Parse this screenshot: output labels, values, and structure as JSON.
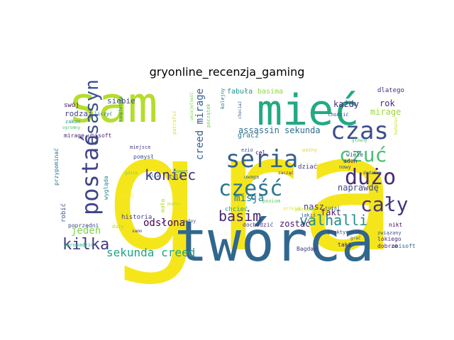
{
  "chart_data": {
    "type": "wordcloud",
    "title": "gryonline_recenzja_gaming",
    "background": "#ffffff",
    "palette": "viridis",
    "grid": false,
    "legend": "none",
    "words": [
      {
        "text": "gra",
        "weight": 1.0,
        "color": "#f5e61c"
      },
      {
        "text": "sam",
        "weight": 0.46,
        "color": "#b5dd2b"
      },
      {
        "text": "twórca",
        "weight": 0.46,
        "color": "#31678e"
      },
      {
        "text": "mieć",
        "weight": 0.34,
        "color": "#23a983"
      },
      {
        "text": "czas",
        "weight": 0.22,
        "color": "#3d4d8a"
      },
      {
        "text": "seria",
        "weight": 0.22,
        "color": "#355f8d"
      },
      {
        "text": "postać",
        "weight": 0.2,
        "color": "#414487"
      },
      {
        "text": "asasyn",
        "weight": 0.2,
        "color": "#3b518b"
      },
      {
        "text": "dużo",
        "weight": 0.2,
        "color": "#472a7a"
      },
      {
        "text": "część",
        "weight": 0.18,
        "color": "#2b758e"
      },
      {
        "text": "cały",
        "weight": 0.18,
        "color": "#453581"
      },
      {
        "text": "czuć",
        "weight": 0.16,
        "color": "#46c06f"
      },
      {
        "text": "koniec",
        "weight": 0.14,
        "color": "#46327e"
      },
      {
        "text": "kilka",
        "weight": 0.13,
        "color": "#443983"
      },
      {
        "text": "valhalli",
        "weight": 0.12,
        "color": "#228c8d"
      },
      {
        "text": "basim",
        "weight": 0.12,
        "color": "#482576"
      },
      {
        "text": "sekunda creed",
        "weight": 0.1,
        "color": "#20a386"
      },
      {
        "text": "jeden",
        "weight": 0.1,
        "color": "#7fd34e"
      },
      {
        "text": "creed mirage",
        "weight": 0.09,
        "color": "#365c8d"
      },
      {
        "text": "odsłona",
        "weight": 0.08,
        "color": "#440154"
      },
      {
        "text": "assassin sekunda",
        "weight": 0.08,
        "color": "#2e6e8e"
      },
      {
        "text": "misja",
        "weight": 0.08,
        "color": "#277f8e"
      },
      {
        "text": "mirage",
        "weight": 0.08,
        "color": "#9bd93c"
      },
      {
        "text": "naprawdę",
        "weight": 0.07,
        "color": "#3f4788"
      },
      {
        "text": "zostać",
        "weight": 0.07,
        "color": "#471164"
      },
      {
        "text": "fakt",
        "weight": 0.07,
        "color": "#481f70"
      },
      {
        "text": "nasz",
        "weight": 0.07,
        "color": "#46337f"
      },
      {
        "text": "każdy",
        "weight": 0.07,
        "color": "#472d7b"
      },
      {
        "text": "rok",
        "weight": 0.07,
        "color": "#482878"
      },
      {
        "text": "rodzaj",
        "weight": 0.06,
        "color": "#433e85"
      },
      {
        "text": "siebie",
        "weight": 0.06,
        "color": "#3e4989"
      },
      {
        "text": "basima",
        "weight": 0.06,
        "color": "#8ed645"
      },
      {
        "text": "fabuła",
        "weight": 0.06,
        "color": "#21918c"
      },
      {
        "text": "gracz",
        "weight": 0.06,
        "color": "#2a788e"
      },
      {
        "text": "dlatego",
        "weight": 0.05,
        "color": "#472c7a"
      },
      {
        "text": "historia",
        "weight": 0.05,
        "color": "#414487"
      },
      {
        "text": "robić",
        "weight": 0.05,
        "color": "#3b528b"
      },
      {
        "text": "przypominać",
        "weight": 0.05,
        "color": "#2c728e"
      },
      {
        "text": "wygląda",
        "weight": 0.05,
        "color": "#25848e"
      },
      {
        "text": "chcieć",
        "weight": 0.05,
        "color": "#1f9e89"
      },
      {
        "text": "dziać",
        "weight": 0.05,
        "color": "#443a83"
      },
      {
        "text": "mirage ubisoft",
        "weight": 0.04,
        "color": "#482475"
      },
      {
        "text": "swój",
        "weight": 0.04,
        "color": "#471365"
      },
      {
        "text": "początek",
        "weight": 0.04,
        "color": "#6ccd5a"
      },
      {
        "text": "pomysł",
        "weight": 0.04,
        "color": "#3b528b"
      },
      {
        "text": "poprzedni",
        "weight": 0.04,
        "color": "#3f4788"
      },
      {
        "text": "aden",
        "weight": 0.04,
        "color": "#482374"
      },
      {
        "text": "mała",
        "weight": 0.04,
        "color": "#b0dd2f"
      },
      {
        "text": "cel",
        "weight": 0.04,
        "color": "#440154"
      },
      {
        "text": "wiele",
        "weight": 0.04,
        "color": "#3e4a89"
      },
      {
        "text": "dochodzić",
        "weight": 0.04,
        "color": "#46327e"
      },
      {
        "text": "wprowadzić",
        "weight": 0.04,
        "color": "#2db27d"
      },
      {
        "text": "ubisoft",
        "weight": 0.03,
        "color": "#33638d"
      },
      {
        "text": "dobrze",
        "weight": 0.03,
        "color": "#481c6e"
      },
      {
        "text": "lokiego",
        "weight": 0.03,
        "color": "#482979"
      },
      {
        "text": "związany",
        "weight": 0.03,
        "color": "#3a548c"
      },
      {
        "text": "nikt",
        "weight": 0.03,
        "color": "#46085c"
      },
      {
        "text": "taki",
        "weight": 0.03,
        "color": "#481769"
      },
      {
        "text": "Bagdad",
        "weight": 0.03,
        "color": "#424086"
      },
      {
        "text": "tyle",
        "weight": 0.03,
        "color": "#355f8d"
      },
      {
        "text": "zakon",
        "weight": 0.03,
        "color": "#20928c"
      },
      {
        "text": "jakiś",
        "weight": 0.03,
        "color": "#3a538b"
      },
      {
        "text": "potrafić",
        "weight": 0.03,
        "color": "#d8e219"
      },
      {
        "text": "liczyć",
        "weight": 0.03,
        "color": "#2d708e"
      },
      {
        "text": "kolejny",
        "weight": 0.03,
        "color": "#2a768e"
      },
      {
        "text": "miejsce",
        "weight": 0.03,
        "color": "#453781"
      },
      {
        "text": "chodzić",
        "weight": 0.03,
        "color": "#3d4e8a"
      },
      {
        "text": "praktycznie",
        "weight": 0.03,
        "color": "#443b84"
      },
      {
        "text": "duży",
        "weight": 0.03,
        "color": "#a2da37"
      },
      {
        "text": "ogromny",
        "weight": 0.03,
        "color": "#46c06f"
      },
      {
        "text": "tutaj",
        "weight": 0.03,
        "color": "#2c728e"
      },
      {
        "text": "skradać",
        "weight": 0.03,
        "color": "#bddf26"
      },
      {
        "text": "nowy",
        "weight": 0.03,
        "color": "#3e4989"
      },
      {
        "text": "gdzie",
        "weight": 0.03,
        "color": "#7ad151"
      },
      {
        "text": "bohater",
        "weight": 0.03,
        "color": "#cde11d"
      },
      {
        "text": "uwaga",
        "weight": 0.02,
        "color": "#375b8d"
      },
      {
        "text": "poziom",
        "weight": 0.02,
        "color": "#5ec962"
      },
      {
        "text": "ważny",
        "weight": 0.02,
        "color": "#ddde1f"
      },
      {
        "text": "zacząć",
        "weight": 0.02,
        "color": "#472f7d"
      },
      {
        "text": "grać",
        "weight": 0.02,
        "color": "#3c4f8a"
      },
      {
        "text": "przejść",
        "weight": 0.02,
        "color": "#e5e419"
      },
      {
        "text": "pełny",
        "weight": 0.02,
        "color": "#404588"
      },
      {
        "text": "samo",
        "weight": 0.02,
        "color": "#424186"
      },
      {
        "text": "główny",
        "weight": 0.02,
        "color": "#4ac16d"
      },
      {
        "text": "chociaż",
        "weight": 0.02,
        "color": "#365c8d"
      },
      {
        "text": "walka",
        "weight": 0.02,
        "color": "#2e6e8e"
      },
      {
        "text": "kompletnie",
        "weight": 0.02,
        "color": "#26828e"
      },
      {
        "text": "moment",
        "weight": 0.02,
        "color": "#35b779"
      },
      {
        "text": "lepiej",
        "weight": 0.02,
        "color": "#fde725"
      },
      {
        "text": "umiejętność",
        "weight": 0.02,
        "color": "#7ad151"
      },
      {
        "text": "dodatek",
        "weight": 0.02,
        "color": "#3d4e8a"
      },
      {
        "text": "mama",
        "weight": 0.02,
        "color": "#c2df23"
      },
      {
        "text": "ezio",
        "weight": 0.02,
        "color": "#3b528b"
      }
    ]
  }
}
